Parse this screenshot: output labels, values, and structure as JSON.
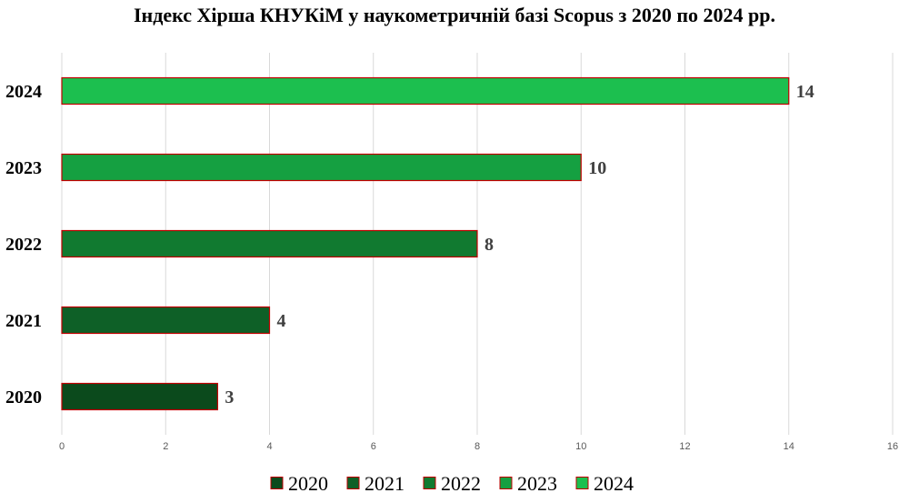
{
  "chart_data": {
    "type": "bar",
    "orientation": "horizontal",
    "title": "Індекс Хірша КНУКіМ у наукометричній базі Scopus з 2020 по 2024  рр.",
    "categories": [
      "2020",
      "2021",
      "2022",
      "2023",
      "2024"
    ],
    "values": [
      3,
      4,
      8,
      10,
      14
    ],
    "data_labels": [
      "3",
      "4",
      "8",
      "10",
      "14"
    ],
    "colors": [
      "#0b4a1c",
      "#0e6027",
      "#117a30",
      "#15a041",
      "#1cbf4f"
    ],
    "bar_border_color": "#c00000",
    "xlim": [
      0,
      16
    ],
    "x_ticks": [
      0,
      2,
      4,
      6,
      8,
      10,
      12,
      14,
      16
    ],
    "x_tick_labels": [
      "0",
      "2",
      "4",
      "6",
      "8",
      "10",
      "12",
      "14",
      "16"
    ],
    "grid": true,
    "legend": {
      "placement": "bottom",
      "entries": [
        "2020",
        "2021",
        "2022",
        "2023",
        "2024"
      ]
    },
    "xlabel": "",
    "ylabel": ""
  }
}
